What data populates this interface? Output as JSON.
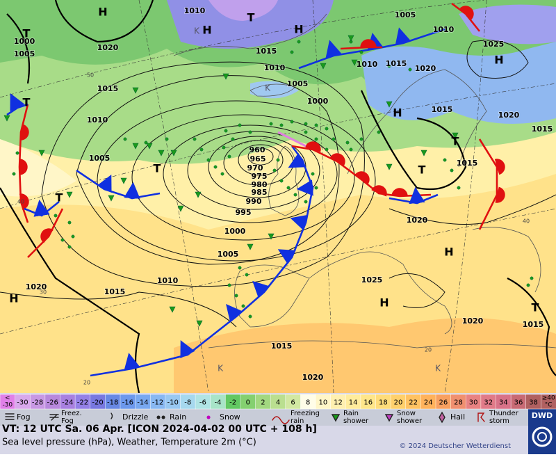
{
  "map": {
    "pressure_labels": [
      "1010",
      "1005",
      "1010",
      "1025",
      "1000",
      "1005",
      "1020",
      "1015",
      "1010",
      "1005",
      "1010",
      "1015",
      "1020",
      "1015",
      "1000",
      "1015",
      "1020",
      "1015",
      "1010",
      "960",
      "965",
      "970",
      "975",
      "980",
      "985",
      "990",
      "995",
      "1000",
      "1005",
      "1005",
      "1010",
      "1015",
      "1020",
      "1015",
      "1020",
      "1025",
      "1020",
      "1015",
      "1015",
      "1020"
    ],
    "centers": [
      "H",
      "T",
      "H",
      "H",
      "T",
      "H",
      "T",
      "H",
      "T",
      "T",
      "T",
      "T",
      "H",
      "H",
      "H",
      "T",
      "K",
      "K",
      "K",
      "K"
    ],
    "temperature_labels": [
      "50",
      "40",
      "30",
      "20",
      "20",
      "40"
    ]
  },
  "scale": {
    "below": "<",
    "below_value": "-30",
    "values": [
      -30,
      -28,
      -26,
      -24,
      -22,
      -20,
      -18,
      -16,
      -14,
      -12,
      -10,
      -8,
      -6,
      -4,
      -2,
      0,
      2,
      4,
      6,
      8,
      10,
      12,
      14,
      16,
      18,
      20,
      22,
      24,
      26,
      28,
      30,
      32,
      34,
      36,
      38
    ],
    "above": "≥40",
    "unit": "°C",
    "colors": [
      "#e080e8",
      "#d8a8ec",
      "#c898e4",
      "#b888dc",
      "#a880e0",
      "#9480e6",
      "#7878e0",
      "#6888e4",
      "#6c98ec",
      "#78a8f0",
      "#88b8f2",
      "#98c8f2",
      "#a6d8ee",
      "#b0e4e4",
      "#a8e4c8",
      "#62c862",
      "#84d070",
      "#a2d880",
      "#badf90",
      "#d2e8a2",
      "#fffde8",
      "#fff6c8",
      "#fff0b0",
      "#ffec9c",
      "#ffe68a",
      "#ffdc7a",
      "#ffd06c",
      "#ffc262",
      "#ffb25c",
      "#f8a060",
      "#f09070",
      "#e88282",
      "#e07a88",
      "#d87288",
      "#c86a74",
      "#b06060",
      "#b06060"
    ]
  },
  "legend": {
    "items": [
      {
        "label": [
          "Fog"
        ]
      },
      {
        "label": [
          "Freez.",
          "Fog"
        ]
      },
      {
        "label": [
          "Drizzle"
        ]
      },
      {
        "label": [
          "Rain"
        ]
      },
      {
        "label": [
          "Snow"
        ]
      },
      {
        "label": [
          "Freezing",
          "rain"
        ]
      },
      {
        "label": [
          "Rain",
          "shower"
        ]
      },
      {
        "label": [
          "Snow",
          "shower"
        ]
      },
      {
        "label": [
          "Hail"
        ]
      },
      {
        "label": [
          "Thunder",
          "storm"
        ]
      }
    ]
  },
  "footer": {
    "valid_time": "VT: 12 UTC Sa.  06 Apr. [ICON 2024-04-02  00 UTC + 108 h]",
    "subtitle": "Sea level pressure (hPa), Weather, Temperature 2m (°C)",
    "copyright": "© 2024 Deutscher Wetterdienst",
    "logo": "DWD"
  }
}
